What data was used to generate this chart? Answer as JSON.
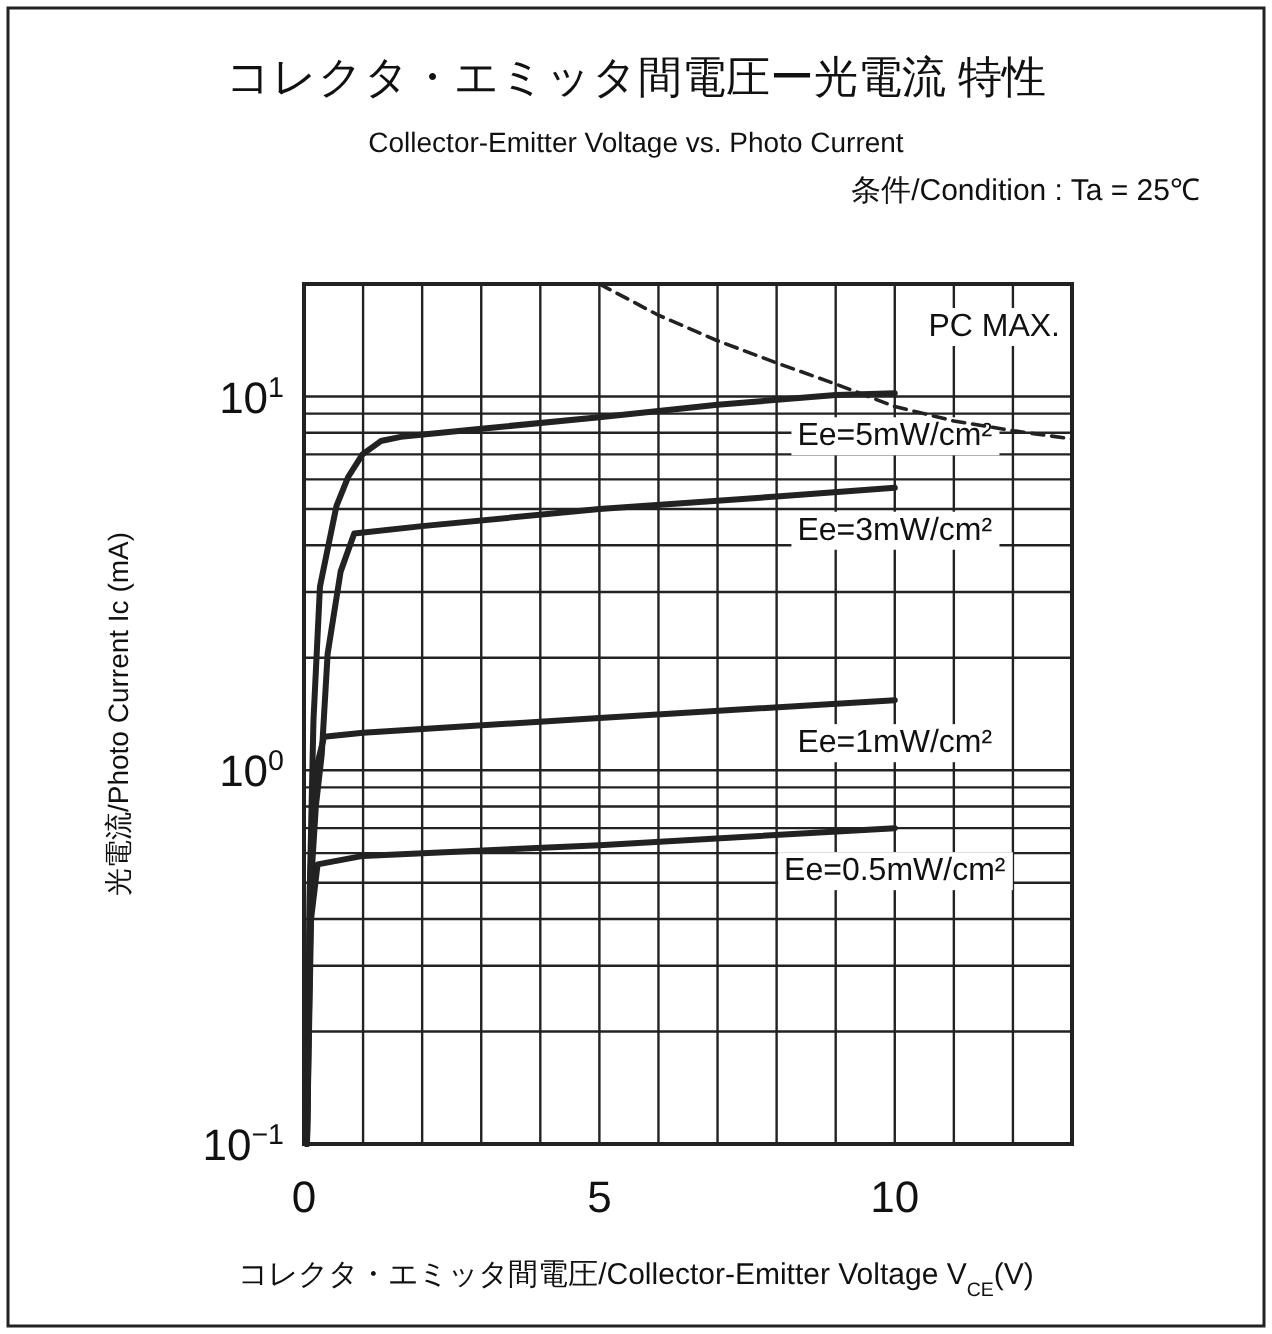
{
  "chart_data": {
    "type": "line",
    "title": "コレクタ・エミッタ間電圧ー光電流  特性",
    "subtitle": "Collector-Emitter Voltage vs. Photo Current",
    "xlabel": "コレクタ・エミッタ間電圧/Collector-Emitter Voltage V$_{CE}$(V)",
    "ylabel": "光電流/Photo Current Ic (mA)",
    "log": "y",
    "grid": true,
    "marker": "none",
    "line_style": "solid",
    "xlim": [
      0,
      13
    ],
    "xticks": [
      0,
      5,
      10
    ],
    "ylim": [
      0.1,
      20
    ],
    "yticks": [
      {
        "value": 0.1,
        "label": "10$^{−1}$"
      },
      {
        "value": 1,
        "label": "10$^{0}$"
      },
      {
        "value": 10,
        "label": "10$^{1}$"
      }
    ],
    "series": [
      {
        "name": "Ee=5mW/cm²",
        "color": "#222222",
        "x": [
          0.05,
          0.1,
          0.16,
          0.27,
          0.55,
          0.75,
          0.99,
          1.3,
          1.64,
          3,
          5,
          7,
          9,
          10
        ],
        "values": [
          0.1,
          0.5,
          1.36,
          3.1,
          5.1,
          6.1,
          7.0,
          7.6,
          7.8,
          8.2,
          8.8,
          9.5,
          10.1,
          10.2
        ]
      },
      {
        "name": "Ee=3mW/cm²",
        "color": "#222222",
        "x": [
          0.05,
          0.12,
          0.2,
          0.3,
          0.4,
          0.62,
          0.85,
          2,
          5,
          8,
          10
        ],
        "values": [
          0.1,
          0.5,
          0.8,
          1.1,
          2.05,
          3.4,
          4.3,
          4.5,
          5.0,
          5.4,
          5.7
        ]
      },
      {
        "name": "Ee=1mW/cm²",
        "color": "#222222",
        "x": [
          0.05,
          0.1,
          0.2,
          0.34,
          1,
          5,
          10
        ],
        "values": [
          0.1,
          0.5,
          1.0,
          1.23,
          1.26,
          1.38,
          1.54
        ]
      },
      {
        "name": "Ee=0.5mW/cm²",
        "color": "#222222",
        "x": [
          0.05,
          0.12,
          0.23,
          1,
          5,
          10
        ],
        "values": [
          0.1,
          0.4,
          0.56,
          0.59,
          0.63,
          0.7
        ]
      },
      {
        "name": "PC MAX.",
        "color": "#222222",
        "line_style": "dashed",
        "x": [
          5,
          6,
          7,
          8,
          9,
          10,
          11,
          12,
          13
        ],
        "values": [
          20,
          16.5,
          14.1,
          12.3,
          10.8,
          9.4,
          8.6,
          8.1,
          7.7
        ]
      }
    ],
    "annotations": [
      "条件/Condition : Ta = 25℃"
    ]
  }
}
